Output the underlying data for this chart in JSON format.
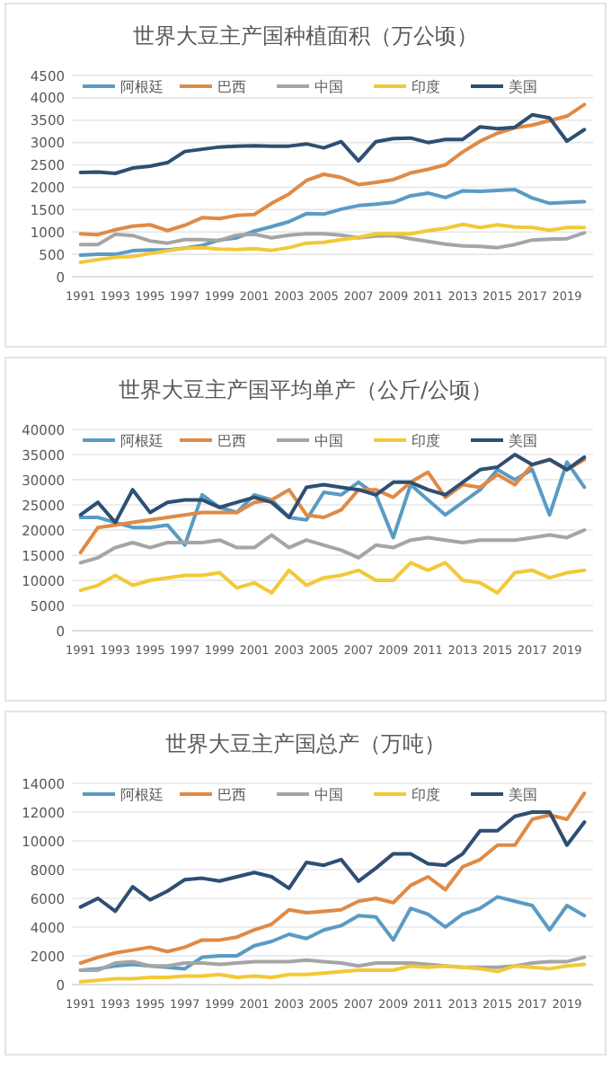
{
  "chart_data": [
    {
      "type": "line",
      "title": "世界大豆主产国种植面积（万公顷）",
      "categories": [
        "1991",
        null,
        "1993",
        null,
        "1995",
        null,
        "1997",
        null,
        "1999",
        null,
        "2001",
        null,
        "2003",
        null,
        "2005",
        null,
        "2007",
        null,
        "2009",
        null,
        "2011",
        null,
        "2013",
        null,
        "2015",
        null,
        "2017",
        null,
        "2019",
        null
      ],
      "ylim": [
        0,
        4500
      ],
      "yticks": [
        0,
        500,
        1000,
        1500,
        2000,
        2500,
        3000,
        3500,
        4000,
        4500
      ],
      "grid": "y",
      "legend": "top",
      "line_style": "solid",
      "marker": "none",
      "series": [
        {
          "name": "阿根廷",
          "color": "#5a9bc4",
          "values": [
            480,
            500,
            500,
            580,
            600,
            600,
            640,
            700,
            820,
            870,
            1020,
            1120,
            1230,
            1410,
            1400,
            1510,
            1590,
            1620,
            1660,
            1810,
            1870,
            1770,
            1920,
            1910,
            1930,
            1950,
            1760,
            1640,
            1660,
            1680
          ]
        },
        {
          "name": "巴西",
          "color": "#e08a45",
          "values": [
            960,
            940,
            1050,
            1130,
            1160,
            1030,
            1150,
            1320,
            1300,
            1370,
            1390,
            1640,
            1850,
            2150,
            2290,
            2220,
            2060,
            2110,
            2170,
            2320,
            2400,
            2500,
            2790,
            3030,
            3210,
            3330,
            3390,
            3490,
            3590,
            3850
          ]
        },
        {
          "name": "中国",
          "color": "#a5a5a5",
          "values": [
            720,
            720,
            950,
            920,
            800,
            750,
            830,
            830,
            810,
            930,
            950,
            870,
            930,
            960,
            960,
            930,
            870,
            910,
            920,
            850,
            790,
            730,
            690,
            680,
            650,
            720,
            820,
            840,
            850,
            980
          ]
        },
        {
          "name": "印度",
          "color": "#f2c936",
          "values": [
            320,
            380,
            430,
            450,
            520,
            580,
            640,
            650,
            620,
            610,
            630,
            590,
            650,
            750,
            770,
            830,
            880,
            960,
            960,
            960,
            1030,
            1080,
            1170,
            1100,
            1160,
            1110,
            1100,
            1040,
            1100,
            1100
          ]
        },
        {
          "name": "美国",
          "color": "#2e4f73",
          "values": [
            2330,
            2340,
            2310,
            2430,
            2470,
            2550,
            2800,
            2850,
            2900,
            2920,
            2930,
            2920,
            2920,
            2970,
            2880,
            3020,
            2590,
            3020,
            3090,
            3100,
            3000,
            3070,
            3070,
            3350,
            3310,
            3340,
            3620,
            3550,
            3030,
            3290
          ]
        }
      ]
    },
    {
      "type": "line",
      "title": "世界大豆主产国平均单产（公斤/公顷）",
      "categories": [
        "1991",
        null,
        "1993",
        null,
        "1995",
        null,
        "1997",
        null,
        "1999",
        null,
        "2001",
        null,
        "2003",
        null,
        "2005",
        null,
        "2007",
        null,
        "2009",
        null,
        "2011",
        null,
        "2013",
        null,
        "2015",
        null,
        "2017",
        null,
        "2019",
        null
      ],
      "ylim": [
        0,
        40000
      ],
      "yticks": [
        0,
        5000,
        10000,
        15000,
        20000,
        25000,
        30000,
        35000,
        40000
      ],
      "grid": "y",
      "legend": "top",
      "line_style": "solid",
      "marker": "none",
      "series": [
        {
          "name": "阿根廷",
          "color": "#5a9bc4",
          "values": [
            22500,
            22500,
            21500,
            20500,
            20500,
            21000,
            17000,
            27000,
            24500,
            23500,
            27000,
            26000,
            22500,
            22000,
            27500,
            27000,
            29500,
            27000,
            18500,
            29000,
            26000,
            23000,
            25500,
            28000,
            32000,
            30000,
            32000,
            23000,
            33500,
            28500
          ]
        },
        {
          "name": "巴西",
          "color": "#e08a45",
          "values": [
            15500,
            20500,
            21000,
            21500,
            22000,
            22500,
            23000,
            23500,
            23500,
            23500,
            25500,
            26000,
            28000,
            23000,
            22500,
            24000,
            28000,
            28000,
            26500,
            29500,
            31500,
            26500,
            29000,
            28500,
            31000,
            29000,
            33000,
            34000,
            32000,
            34000
          ]
        },
        {
          "name": "中国",
          "color": "#a5a5a5",
          "values": [
            13500,
            14500,
            16500,
            17500,
            16500,
            17500,
            17500,
            17500,
            18000,
            16500,
            16500,
            19000,
            16500,
            18000,
            17000,
            16000,
            14500,
            17000,
            16500,
            18000,
            18500,
            18000,
            17500,
            18000,
            18000,
            18000,
            18500,
            19000,
            18500,
            20000
          ]
        },
        {
          "name": "印度",
          "color": "#f2c936",
          "values": [
            8000,
            9000,
            11000,
            9000,
            10000,
            10500,
            11000,
            11000,
            11500,
            8500,
            9500,
            7500,
            12000,
            9000,
            10500,
            11000,
            12000,
            10000,
            10000,
            13500,
            12000,
            13500,
            10000,
            9500,
            7500,
            11500,
            12000,
            10500,
            11500,
            12000
          ]
        },
        {
          "name": "美国",
          "color": "#2e4f73",
          "values": [
            23000,
            25500,
            21500,
            28000,
            23500,
            25500,
            26000,
            26000,
            24500,
            25500,
            26500,
            25500,
            22500,
            28500,
            29000,
            28500,
            28000,
            27000,
            29500,
            29500,
            28000,
            27000,
            29500,
            32000,
            32500,
            35000,
            33000,
            34000,
            32000,
            34500
          ]
        }
      ]
    },
    {
      "type": "line",
      "title": "世界大豆主产国总产（万吨）",
      "categories": [
        "1991",
        null,
        "1993",
        null,
        "1995",
        null,
        "1997",
        null,
        "1999",
        null,
        "2001",
        null,
        "2003",
        null,
        "2005",
        null,
        "2007",
        null,
        "2009",
        null,
        "2011",
        null,
        "2013",
        null,
        "2015",
        null,
        "2017",
        null,
        "2019",
        null
      ],
      "ylim": [
        0,
        14000
      ],
      "yticks": [
        0,
        2000,
        4000,
        6000,
        8000,
        10000,
        12000,
        14000
      ],
      "grid": "y",
      "legend": "top",
      "line_style": "solid",
      "marker": "none",
      "series": [
        {
          "name": "阿根廷",
          "color": "#5a9bc4",
          "values": [
            1000,
            1100,
            1300,
            1400,
            1300,
            1200,
            1100,
            1900,
            2000,
            2000,
            2700,
            3000,
            3500,
            3200,
            3800,
            4100,
            4800,
            4700,
            3100,
            5300,
            4900,
            4000,
            4900,
            5300,
            6100,
            5800,
            5500,
            3800,
            5500,
            4800
          ]
        },
        {
          "name": "巴西",
          "color": "#e08a45",
          "values": [
            1500,
            1900,
            2200,
            2400,
            2600,
            2300,
            2600,
            3100,
            3100,
            3300,
            3800,
            4200,
            5200,
            5000,
            5100,
            5200,
            5800,
            6000,
            5700,
            6900,
            7500,
            6600,
            8200,
            8700,
            9700,
            9700,
            11500,
            11800,
            11500,
            13300
          ]
        },
        {
          "name": "中国",
          "color": "#a5a5a5",
          "values": [
            1000,
            1000,
            1500,
            1600,
            1300,
            1300,
            1500,
            1500,
            1400,
            1500,
            1600,
            1600,
            1600,
            1700,
            1600,
            1500,
            1300,
            1500,
            1500,
            1500,
            1400,
            1300,
            1200,
            1200,
            1200,
            1300,
            1500,
            1600,
            1600,
            1900
          ]
        },
        {
          "name": "印度",
          "color": "#f2c936",
          "values": [
            200,
            300,
            400,
            400,
            500,
            500,
            600,
            600,
            700,
            500,
            600,
            500,
            700,
            700,
            800,
            900,
            1000,
            1000,
            1000,
            1300,
            1200,
            1300,
            1200,
            1100,
            900,
            1300,
            1200,
            1100,
            1300,
            1400
          ]
        },
        {
          "name": "美国",
          "color": "#2e4f73",
          "values": [
            5400,
            6000,
            5100,
            6800,
            5900,
            6500,
            7300,
            7400,
            7200,
            7500,
            7800,
            7500,
            6700,
            8500,
            8300,
            8700,
            7200,
            8100,
            9100,
            9100,
            8400,
            8300,
            9100,
            10700,
            10700,
            11700,
            12000,
            12000,
            9700,
            11300
          ]
        }
      ]
    }
  ]
}
